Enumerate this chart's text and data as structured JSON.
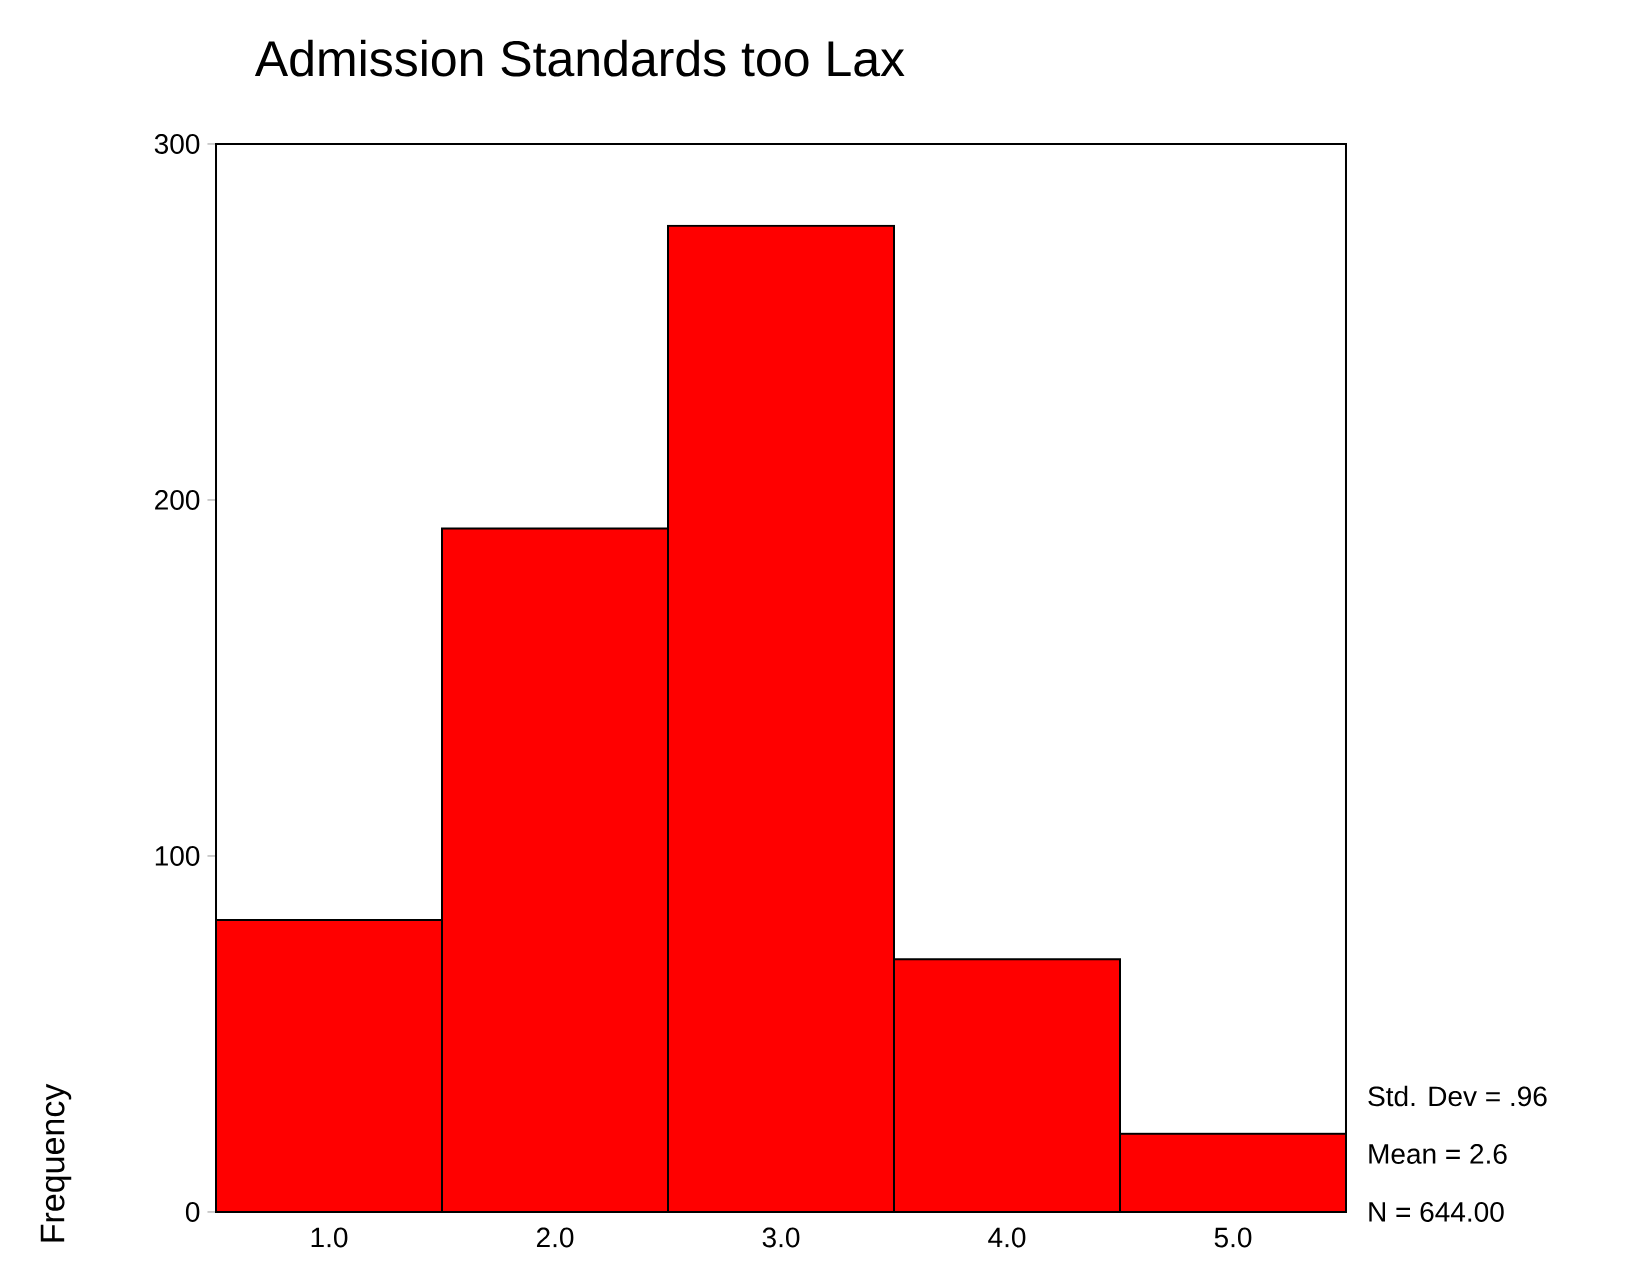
{
  "chart_data": {
    "type": "histogram",
    "title": "Admission Standards too Lax",
    "ylabel": "Frequency",
    "bins": [
      0.5,
      1.5,
      2.5,
      3.5,
      4.5,
      5.5
    ],
    "values": [
      82,
      192,
      277,
      71,
      22
    ],
    "color": "#ff0000",
    "xlim": [
      0.5,
      5.5
    ],
    "ylim": [
      0,
      300
    ],
    "xticks": [
      {
        "value": 1,
        "label": "1.0"
      },
      {
        "value": 2,
        "label": "2.0"
      },
      {
        "value": 3,
        "label": "3.0"
      },
      {
        "value": 4,
        "label": "4.0"
      },
      {
        "value": 5,
        "label": "5.0"
      }
    ],
    "yticks": [
      0,
      100,
      200,
      300
    ],
    "annotations": [
      "Std. Dev = .96",
      "Mean = 2.6",
      "N = 644.00"
    ]
  }
}
